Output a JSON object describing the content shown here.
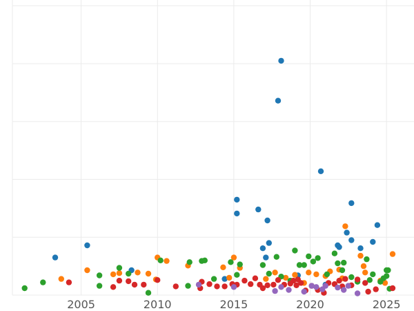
{
  "chart_data": {
    "type": "scatter",
    "title": "",
    "xlabel": "",
    "ylabel": "",
    "xlim": [
      2000.5,
      2026.8
    ],
    "ylim": [
      0,
      5.1
    ],
    "x_ticks": [
      2005,
      2010,
      2015,
      2020,
      2025
    ],
    "x_tick_labels": [
      "2005",
      "2010",
      "2015",
      "2020",
      "2025"
    ],
    "y_gridlines": [
      0,
      1,
      2,
      3,
      4,
      5
    ],
    "grid": true,
    "legend": "none",
    "series": [
      {
        "color": "#1f77b4",
        "points": [
          [
            2003.3,
            0.65
          ],
          [
            2005.4,
            0.86
          ],
          [
            2008.3,
            0.43
          ],
          [
            2014.4,
            0.28
          ],
          [
            2015.2,
            1.41
          ],
          [
            2015.2,
            1.65
          ],
          [
            2016.6,
            1.48
          ],
          [
            2016.9,
            0.81
          ],
          [
            2017.1,
            0.65
          ],
          [
            2017.2,
            1.29
          ],
          [
            2017.3,
            0.9
          ],
          [
            2017.9,
            3.36
          ],
          [
            2018.1,
            4.05
          ],
          [
            2019.2,
            0.34
          ],
          [
            2020.7,
            2.14
          ],
          [
            2021.8,
            0.86
          ],
          [
            2021.9,
            0.83
          ],
          [
            2022.4,
            1.08
          ],
          [
            2022.7,
            0.95
          ],
          [
            2022.7,
            1.59
          ],
          [
            2023.3,
            0.81
          ],
          [
            2024.1,
            0.92
          ],
          [
            2024.4,
            1.21
          ],
          [
            2021.0,
            0.18
          ]
        ]
      },
      {
        "color": "#ff7f0e",
        "points": [
          [
            2003.7,
            0.28
          ],
          [
            2005.4,
            0.43
          ],
          [
            2007.1,
            0.36
          ],
          [
            2007.5,
            0.38
          ],
          [
            2008.7,
            0.39
          ],
          [
            2009.4,
            0.37
          ],
          [
            2009.9,
            0.27
          ],
          [
            2010.0,
            0.65
          ],
          [
            2010.6,
            0.59
          ],
          [
            2012.0,
            0.51
          ],
          [
            2014.3,
            0.48
          ],
          [
            2014.7,
            0.3
          ],
          [
            2015.0,
            0.65
          ],
          [
            2015.4,
            0.47
          ],
          [
            2017.1,
            0.28
          ],
          [
            2017.7,
            0.39
          ],
          [
            2018.4,
            0.3
          ],
          [
            2019.0,
            0.35
          ],
          [
            2019.6,
            0.21
          ],
          [
            2019.9,
            0.39
          ],
          [
            2020.4,
            0.36
          ],
          [
            2021.0,
            0.33
          ],
          [
            2021.3,
            0.41
          ],
          [
            2022.1,
            0.29
          ],
          [
            2022.3,
            1.19
          ],
          [
            2023.3,
            0.68
          ],
          [
            2023.5,
            0.5
          ],
          [
            2023.6,
            0.39
          ],
          [
            2024.9,
            0.21
          ],
          [
            2025.4,
            0.71
          ],
          [
            2024.6,
            0.25
          ],
          [
            2021.9,
            0.44
          ]
        ]
      },
      {
        "color": "#2ca02c",
        "points": [
          [
            2001.3,
            0.12
          ],
          [
            2002.5,
            0.22
          ],
          [
            2006.2,
            0.16
          ],
          [
            2006.2,
            0.34
          ],
          [
            2007.5,
            0.47
          ],
          [
            2008.1,
            0.37
          ],
          [
            2009.4,
            0.04
          ],
          [
            2010.2,
            0.6
          ],
          [
            2012.0,
            0.16
          ],
          [
            2012.1,
            0.57
          ],
          [
            2012.9,
            0.59
          ],
          [
            2013.1,
            0.6
          ],
          [
            2013.7,
            0.28
          ],
          [
            2014.8,
            0.57
          ],
          [
            2015.2,
            0.35
          ],
          [
            2015.4,
            0.53
          ],
          [
            2016.9,
            0.52
          ],
          [
            2017.3,
            0.37
          ],
          [
            2017.8,
            0.66
          ],
          [
            2018.7,
            0.25
          ],
          [
            2019.0,
            0.77
          ],
          [
            2019.3,
            0.52
          ],
          [
            2019.6,
            0.52
          ],
          [
            2019.9,
            0.67
          ],
          [
            2020.2,
            0.58
          ],
          [
            2020.5,
            0.64
          ],
          [
            2021.1,
            0.36
          ],
          [
            2021.6,
            0.72
          ],
          [
            2021.8,
            0.55
          ],
          [
            2022.1,
            0.43
          ],
          [
            2022.2,
            0.56
          ],
          [
            2022.7,
            0.31
          ],
          [
            2023.1,
            0.23
          ],
          [
            2023.7,
            0.62
          ],
          [
            2023.9,
            0.26
          ],
          [
            2024.1,
            0.36
          ],
          [
            2024.8,
            0.29
          ],
          [
            2025.0,
            0.43
          ],
          [
            2025.1,
            0.43
          ],
          [
            2025.0,
            0.33
          ],
          [
            2024.6,
            0.23
          ],
          [
            2025.2,
            0.11
          ],
          [
            2018.1,
            0.32
          ]
        ]
      },
      {
        "color": "#d62728",
        "points": [
          [
            2004.2,
            0.22
          ],
          [
            2007.1,
            0.14
          ],
          [
            2007.5,
            0.25
          ],
          [
            2008.1,
            0.24
          ],
          [
            2008.5,
            0.18
          ],
          [
            2009.1,
            0.18
          ],
          [
            2010.0,
            0.26
          ],
          [
            2011.2,
            0.15
          ],
          [
            2012.8,
            0.12
          ],
          [
            2012.9,
            0.23
          ],
          [
            2013.4,
            0.19
          ],
          [
            2013.9,
            0.15
          ],
          [
            2014.4,
            0.15
          ],
          [
            2014.9,
            0.19
          ],
          [
            2015.2,
            0.18
          ],
          [
            2015.7,
            0.25
          ],
          [
            2016.1,
            0.19
          ],
          [
            2016.4,
            0.29
          ],
          [
            2016.7,
            0.18
          ],
          [
            2016.9,
            0.12
          ],
          [
            2017.2,
            0.17
          ],
          [
            2017.6,
            0.18
          ],
          [
            2017.9,
            0.26
          ],
          [
            2018.3,
            0.18
          ],
          [
            2018.7,
            0.2
          ],
          [
            2019.1,
            0.17
          ],
          [
            2019.4,
            0.21
          ],
          [
            2019.7,
            0.08
          ],
          [
            2020.1,
            0.16
          ],
          [
            2020.5,
            0.09
          ],
          [
            2020.9,
            0.04
          ],
          [
            2021.2,
            0.21
          ],
          [
            2021.6,
            0.19
          ],
          [
            2021.9,
            0.25
          ],
          [
            2022.3,
            0.28
          ],
          [
            2022.7,
            0.17
          ],
          [
            2023.1,
            0.27
          ],
          [
            2023.6,
            0.21
          ],
          [
            2023.8,
            0.06
          ],
          [
            2024.3,
            0.1
          ],
          [
            2025.4,
            0.12
          ],
          [
            2019.2,
            0.27
          ],
          [
            2018.9,
            0.25
          ],
          [
            2022.1,
            0.15
          ]
        ]
      },
      {
        "color": "#9467bd",
        "points": [
          [
            2012.7,
            0.18
          ],
          [
            2015.0,
            0.14
          ],
          [
            2017.7,
            0.07
          ],
          [
            2018.6,
            0.09
          ],
          [
            2019.6,
            0.06
          ],
          [
            2020.4,
            0.14
          ],
          [
            2021.0,
            0.16
          ],
          [
            2021.8,
            0.13
          ],
          [
            2022.2,
            0.09
          ],
          [
            2022.5,
            0.16
          ],
          [
            2023.1,
            0.03
          ],
          [
            2020.1,
            0.16
          ],
          [
            2018.1,
            0.14
          ],
          [
            2020.8,
            0.1
          ]
        ]
      }
    ]
  }
}
